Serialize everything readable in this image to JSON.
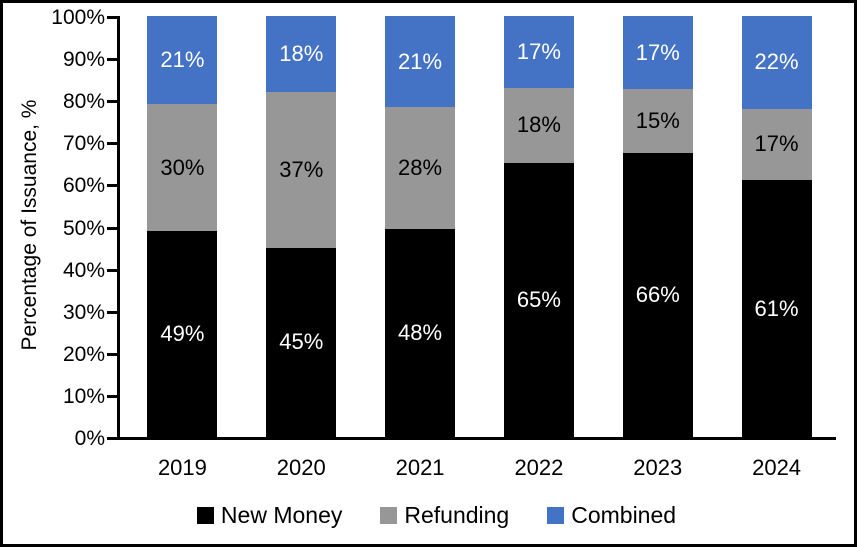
{
  "chart_data": {
    "type": "bar",
    "stacked": true,
    "title": "",
    "ylabel": "Percentage of Issuance, %",
    "xlabel": "",
    "categories": [
      "2019",
      "2020",
      "2021",
      "2022",
      "2023",
      "2024"
    ],
    "series": [
      {
        "name": "New Money",
        "color": "#000000",
        "label_color": "#FFFFFF",
        "values": [
          49,
          45,
          48,
          65,
          66,
          61
        ],
        "labels": [
          "49%",
          "45%",
          "48%",
          "65%",
          "66%",
          "61%"
        ]
      },
      {
        "name": "Refunding",
        "color": "#979797",
        "label_color": "#000000",
        "values": [
          30,
          37,
          28,
          18,
          15,
          17
        ],
        "labels": [
          "30%",
          "37%",
          "28%",
          "18%",
          "15%",
          "17%"
        ]
      },
      {
        "name": "Combined",
        "color": "#4472C4",
        "label_color": "#FFFFFF",
        "values": [
          21,
          18,
          21,
          17,
          17,
          22
        ],
        "labels": [
          "21%",
          "18%",
          "21%",
          "17%",
          "17%",
          "22%"
        ]
      }
    ],
    "ylim": [
      0,
      100
    ],
    "y_ticks": [
      "0%",
      "10%",
      "20%",
      "30%",
      "40%",
      "50%",
      "60%",
      "70%",
      "80%",
      "90%",
      "100%"
    ],
    "grid": false,
    "legend_position": "bottom",
    "axis_color": "#000000",
    "background": "#FFFFFF"
  }
}
